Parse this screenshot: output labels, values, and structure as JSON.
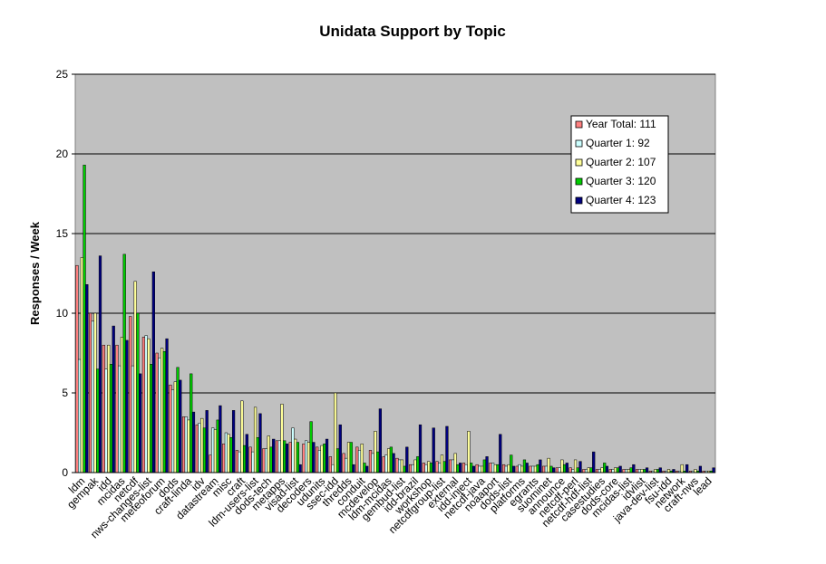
{
  "chart_data": {
    "type": "bar",
    "title": "Unidata Support by Topic",
    "xlabel": "",
    "ylabel": "Responses / Week",
    "ylim": [
      0,
      25
    ],
    "yticks": [
      0,
      5,
      10,
      15,
      20,
      25
    ],
    "grid": true,
    "legend_position": "top-right",
    "categories": [
      "ldm",
      "gempak",
      "idd",
      "mcidas",
      "netcdf",
      "nws-changes-list",
      "meteoforum",
      "dods",
      "craft-linda",
      "idv",
      "datastream",
      "misc",
      "craft",
      "ldm-users-list",
      "dods-tech",
      "metapps",
      "visad-list",
      "decoders",
      "udunits",
      "ssec-idd",
      "thredds",
      "conduit",
      "mcdevelop",
      "ldm-mcidas",
      "gembud-list",
      "idd-brazil",
      "workshop",
      "netcdfgroup-list",
      "external",
      "idd-inject",
      "netcdf-java",
      "noaaport",
      "dods-list",
      "platforms",
      "egrants",
      "suominet",
      "announce",
      "netcdf-perl",
      "netcdf-hdf-list",
      "casestudies",
      "dods-core",
      "mcidas-list",
      "idvlist",
      "java-dev-list",
      "fsu-idd",
      "network",
      "craft-nws",
      "lead"
    ],
    "series": [
      {
        "name": "Year Total: 111",
        "color": "#ff8080",
        "values": [
          13.0,
          10.0,
          8.0,
          8.0,
          9.8,
          8.5,
          7.5,
          5.5,
          3.5,
          3.0,
          1.1,
          1.8,
          1.4,
          1.6,
          1.5,
          2.0,
          1.9,
          1.8,
          1.6,
          1.0,
          1.2,
          1.6,
          1.4,
          1.0,
          0.9,
          0.5,
          0.6,
          0.7,
          0.8,
          0.6,
          0.5,
          0.6,
          0.5,
          0.4,
          0.4,
          0.4,
          0.3,
          0.3,
          0.2,
          0.2,
          0.2,
          0.2,
          0.2,
          0.1,
          0.1,
          0.1,
          0.1,
          0.1
        ]
      },
      {
        "name": "Quarter 1: 92",
        "color": "#ccffff",
        "values": [
          7.1,
          9.5,
          6.5,
          6.7,
          6.7,
          8.6,
          7.2,
          5.2,
          3.5,
          3.1,
          2.8,
          2.5,
          1.3,
          1.3,
          1.5,
          2.0,
          2.8,
          2.0,
          1.4,
          0.5,
          0.9,
          1.4,
          1.2,
          1.1,
          0.8,
          0.5,
          0.5,
          0.6,
          0.8,
          0.5,
          0.4,
          0.6,
          0.4,
          0.5,
          0.4,
          0.4,
          0.3,
          0.2,
          0.2,
          0.2,
          0.2,
          0.2,
          0.2,
          0.1,
          0.1,
          0.1,
          0.1,
          0.1
        ]
      },
      {
        "name": "Quarter 2: 107",
        "color": "#ffff99",
        "values": [
          13.5,
          10.0,
          8.0,
          8.5,
          12.0,
          8.4,
          7.8,
          5.7,
          3.3,
          3.4,
          2.7,
          2.4,
          4.5,
          4.1,
          2.3,
          4.3,
          2.1,
          1.9,
          1.7,
          5.0,
          1.9,
          1.8,
          2.6,
          1.5,
          0.8,
          0.8,
          0.7,
          1.1,
          1.2,
          2.6,
          0.4,
          0.5,
          0.5,
          0.4,
          0.4,
          0.9,
          0.8,
          0.8,
          0.3,
          0.3,
          0.3,
          0.2,
          0.2,
          0.2,
          0.2,
          0.5,
          0.2,
          0.1
        ]
      },
      {
        "name": "Quarter 3: 120",
        "color": "#00cc00",
        "values": [
          19.3,
          6.5,
          6.8,
          13.7,
          10.0,
          6.8,
          7.6,
          6.6,
          6.2,
          2.8,
          3.3,
          2.2,
          1.7,
          2.2,
          1.6,
          2.0,
          1.9,
          3.2,
          1.8,
          1.5,
          1.9,
          0.6,
          1.3,
          1.6,
          0.4,
          1.0,
          0.6,
          0.7,
          0.5,
          0.6,
          0.8,
          0.5,
          1.1,
          0.8,
          0.5,
          0.4,
          0.5,
          0.3,
          0.3,
          0.6,
          0.3,
          0.3,
          0.2,
          0.2,
          0.1,
          0.1,
          0.1,
          0.1
        ]
      },
      {
        "name": "Quarter 4: 123",
        "color": "#000080",
        "values": [
          11.8,
          13.6,
          9.2,
          8.3,
          6.2,
          12.6,
          8.4,
          5.8,
          3.8,
          3.9,
          4.2,
          3.9,
          2.4,
          3.7,
          2.1,
          1.8,
          0.5,
          1.9,
          2.1,
          3.0,
          0.5,
          0.4,
          4.0,
          1.2,
          1.6,
          3.0,
          2.8,
          2.9,
          0.6,
          0.4,
          1.0,
          2.4,
          0.4,
          0.6,
          0.8,
          0.3,
          0.6,
          0.7,
          1.3,
          0.4,
          0.4,
          0.5,
          0.3,
          0.3,
          0.2,
          0.5,
          0.4,
          0.3
        ]
      }
    ]
  }
}
